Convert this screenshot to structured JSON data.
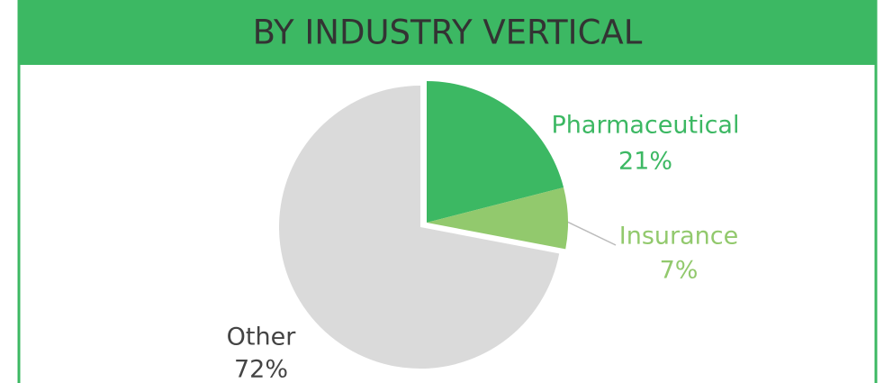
{
  "chart_data": {
    "type": "pie",
    "title": "BY INDUSTRY VERTICAL",
    "categories": [
      "Pharmaceutical",
      "Insurance",
      "Other"
    ],
    "values": [
      21,
      7,
      72
    ],
    "value_labels": [
      "21%",
      "7%",
      "72%"
    ],
    "colors": [
      "#3cb863",
      "#92c96d",
      "#dadada"
    ],
    "label_colors": [
      "#3cb863",
      "#92c96d",
      "#444444"
    ]
  }
}
